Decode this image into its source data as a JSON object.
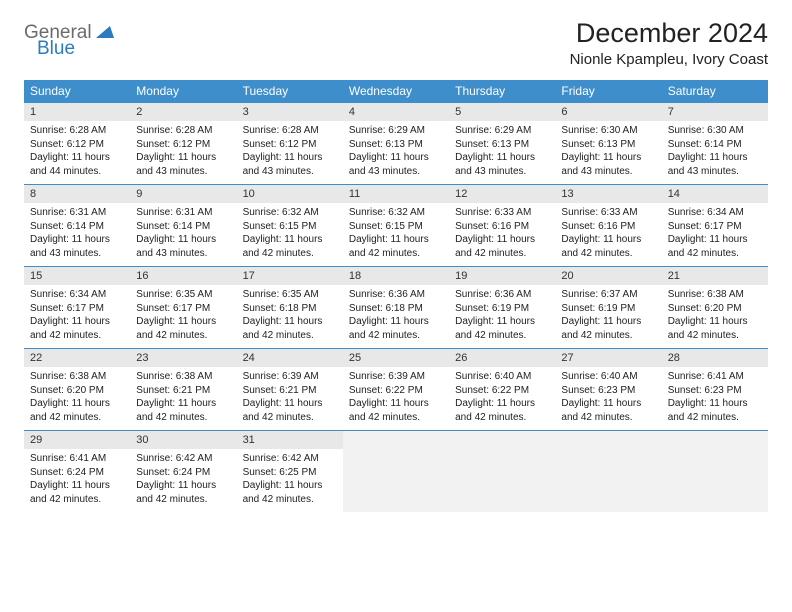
{
  "brand": {
    "part1": "General",
    "part2": "Blue"
  },
  "title": "December 2024",
  "location": "Nionle Kpampleu, Ivory Coast",
  "colors": {
    "header_bg": "#3d8ecb",
    "header_text": "#ffffff",
    "daynum_bg": "#e8e8e8",
    "border": "#3d8ecb",
    "logo_gray": "#6b6b6b",
    "logo_blue": "#2b7bbf"
  },
  "fonts": {
    "title_size": 27,
    "location_size": 15,
    "dayhead_size": 12,
    "body_size": 10
  },
  "day_headers": [
    "Sunday",
    "Monday",
    "Tuesday",
    "Wednesday",
    "Thursday",
    "Friday",
    "Saturday"
  ],
  "weeks": [
    [
      {
        "n": "1",
        "sr": "6:28 AM",
        "ss": "6:12 PM",
        "dl": "11 hours and 44 minutes."
      },
      {
        "n": "2",
        "sr": "6:28 AM",
        "ss": "6:12 PM",
        "dl": "11 hours and 43 minutes."
      },
      {
        "n": "3",
        "sr": "6:28 AM",
        "ss": "6:12 PM",
        "dl": "11 hours and 43 minutes."
      },
      {
        "n": "4",
        "sr": "6:29 AM",
        "ss": "6:13 PM",
        "dl": "11 hours and 43 minutes."
      },
      {
        "n": "5",
        "sr": "6:29 AM",
        "ss": "6:13 PM",
        "dl": "11 hours and 43 minutes."
      },
      {
        "n": "6",
        "sr": "6:30 AM",
        "ss": "6:13 PM",
        "dl": "11 hours and 43 minutes."
      },
      {
        "n": "7",
        "sr": "6:30 AM",
        "ss": "6:14 PM",
        "dl": "11 hours and 43 minutes."
      }
    ],
    [
      {
        "n": "8",
        "sr": "6:31 AM",
        "ss": "6:14 PM",
        "dl": "11 hours and 43 minutes."
      },
      {
        "n": "9",
        "sr": "6:31 AM",
        "ss": "6:14 PM",
        "dl": "11 hours and 43 minutes."
      },
      {
        "n": "10",
        "sr": "6:32 AM",
        "ss": "6:15 PM",
        "dl": "11 hours and 42 minutes."
      },
      {
        "n": "11",
        "sr": "6:32 AM",
        "ss": "6:15 PM",
        "dl": "11 hours and 42 minutes."
      },
      {
        "n": "12",
        "sr": "6:33 AM",
        "ss": "6:16 PM",
        "dl": "11 hours and 42 minutes."
      },
      {
        "n": "13",
        "sr": "6:33 AM",
        "ss": "6:16 PM",
        "dl": "11 hours and 42 minutes."
      },
      {
        "n": "14",
        "sr": "6:34 AM",
        "ss": "6:17 PM",
        "dl": "11 hours and 42 minutes."
      }
    ],
    [
      {
        "n": "15",
        "sr": "6:34 AM",
        "ss": "6:17 PM",
        "dl": "11 hours and 42 minutes."
      },
      {
        "n": "16",
        "sr": "6:35 AM",
        "ss": "6:17 PM",
        "dl": "11 hours and 42 minutes."
      },
      {
        "n": "17",
        "sr": "6:35 AM",
        "ss": "6:18 PM",
        "dl": "11 hours and 42 minutes."
      },
      {
        "n": "18",
        "sr": "6:36 AM",
        "ss": "6:18 PM",
        "dl": "11 hours and 42 minutes."
      },
      {
        "n": "19",
        "sr": "6:36 AM",
        "ss": "6:19 PM",
        "dl": "11 hours and 42 minutes."
      },
      {
        "n": "20",
        "sr": "6:37 AM",
        "ss": "6:19 PM",
        "dl": "11 hours and 42 minutes."
      },
      {
        "n": "21",
        "sr": "6:38 AM",
        "ss": "6:20 PM",
        "dl": "11 hours and 42 minutes."
      }
    ],
    [
      {
        "n": "22",
        "sr": "6:38 AM",
        "ss": "6:20 PM",
        "dl": "11 hours and 42 minutes."
      },
      {
        "n": "23",
        "sr": "6:38 AM",
        "ss": "6:21 PM",
        "dl": "11 hours and 42 minutes."
      },
      {
        "n": "24",
        "sr": "6:39 AM",
        "ss": "6:21 PM",
        "dl": "11 hours and 42 minutes."
      },
      {
        "n": "25",
        "sr": "6:39 AM",
        "ss": "6:22 PM",
        "dl": "11 hours and 42 minutes."
      },
      {
        "n": "26",
        "sr": "6:40 AM",
        "ss": "6:22 PM",
        "dl": "11 hours and 42 minutes."
      },
      {
        "n": "27",
        "sr": "6:40 AM",
        "ss": "6:23 PM",
        "dl": "11 hours and 42 minutes."
      },
      {
        "n": "28",
        "sr": "6:41 AM",
        "ss": "6:23 PM",
        "dl": "11 hours and 42 minutes."
      }
    ],
    [
      {
        "n": "29",
        "sr": "6:41 AM",
        "ss": "6:24 PM",
        "dl": "11 hours and 42 minutes."
      },
      {
        "n": "30",
        "sr": "6:42 AM",
        "ss": "6:24 PM",
        "dl": "11 hours and 42 minutes."
      },
      {
        "n": "31",
        "sr": "6:42 AM",
        "ss": "6:25 PM",
        "dl": "11 hours and 42 minutes."
      },
      null,
      null,
      null,
      null
    ]
  ],
  "labels": {
    "sunrise": "Sunrise:",
    "sunset": "Sunset:",
    "daylight": "Daylight:"
  }
}
